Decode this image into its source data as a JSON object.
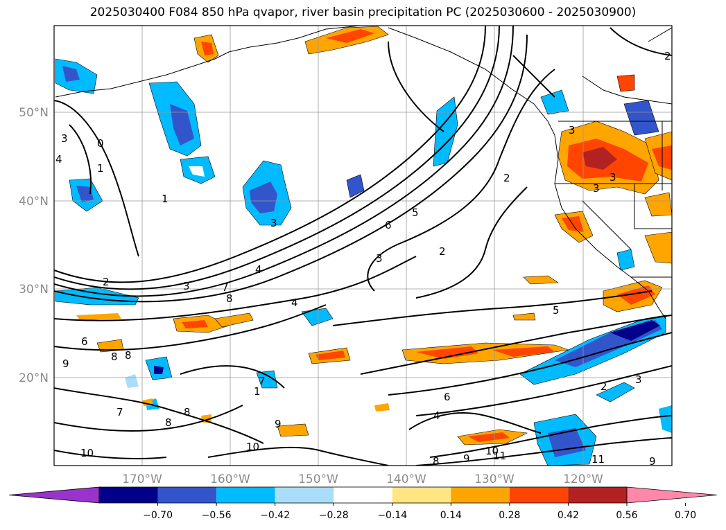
{
  "title": "2025030400 F084 850 hPa qvapor, river basin precipitation PC (2025030600 - 2025030900)",
  "lat_labels": [
    "50°N",
    "40°N",
    "30°N",
    "20°N"
  ],
  "lon_labels": [
    "170°W",
    "160°W",
    "150°W",
    "140°W",
    "130°W",
    "120°W"
  ],
  "colorbar": {
    "labels": [
      "−0.70",
      "−0.56",
      "−0.42",
      "−0.28",
      "−0.14",
      "0.14",
      "0.28",
      "0.42",
      "0.56",
      "0.70"
    ],
    "colors": [
      "#9933cc",
      "#00008b",
      "#3355cc",
      "#00bbff",
      "#aaddf8",
      "#ffffff",
      "#ffe680",
      "#ffa500",
      "#ff4500",
      "#b22222",
      "#ff88aa"
    ]
  },
  "contour_labels": [
    "3",
    "0",
    "1",
    "4",
    "1",
    "2",
    "3",
    "4",
    "7",
    "8",
    "2",
    "3",
    "4",
    "6",
    "5",
    "6",
    "8",
    "9",
    "8",
    "7",
    "8",
    "8",
    "9",
    "10",
    "10",
    "1",
    "7",
    "4",
    "6",
    "5",
    "2",
    "3",
    "2",
    "3",
    "3",
    "3",
    "2",
    "3",
    "11",
    "10",
    "9",
    "8",
    "11",
    "9"
  ]
}
